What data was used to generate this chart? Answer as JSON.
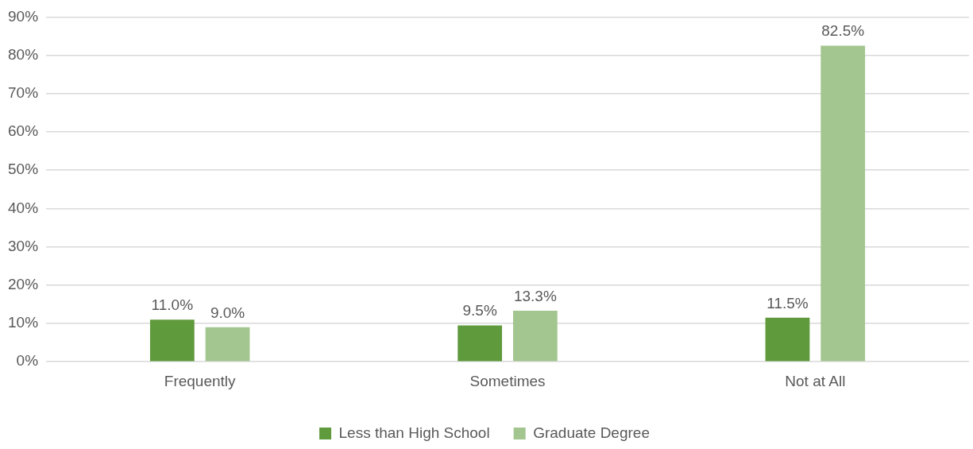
{
  "chart_data": {
    "type": "bar",
    "categories": [
      "Frequently",
      "Sometimes",
      "Not at All"
    ],
    "series": [
      {
        "name": "Less than High School",
        "color": "#5f9a3d",
        "values": [
          11.0,
          9.5,
          11.5
        ],
        "value_labels": [
          "11.0%",
          "9.5%",
          "11.5%"
        ]
      },
      {
        "name": "Graduate Degree",
        "color": "#a3c58f",
        "values": [
          9.0,
          13.3,
          82.5
        ],
        "value_labels": [
          "9.0%",
          "13.3%",
          "82.5%"
        ]
      }
    ],
    "ylim": [
      0,
      90
    ],
    "yticks": [
      {
        "value": 0,
        "label": "0%"
      },
      {
        "value": 10,
        "label": "10%"
      },
      {
        "value": 20,
        "label": "20%"
      },
      {
        "value": 30,
        "label": "30%"
      },
      {
        "value": 40,
        "label": "40%"
      },
      {
        "value": 50,
        "label": "50%"
      },
      {
        "value": 60,
        "label": "60%"
      },
      {
        "value": 70,
        "label": "70%"
      },
      {
        "value": 80,
        "label": "80%"
      },
      {
        "value": 90,
        "label": "90%"
      }
    ],
    "grid": "y",
    "legend": "bottom"
  }
}
